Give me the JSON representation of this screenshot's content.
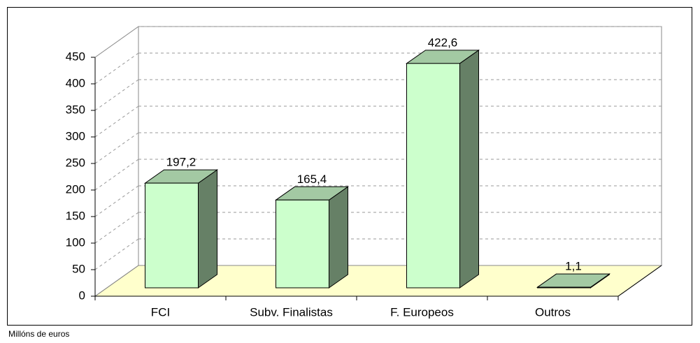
{
  "chart_data": {
    "type": "bar3d",
    "categories": [
      "FCI",
      "Subv. Finalistas",
      "F. Europeos",
      "Outros"
    ],
    "values": [
      197.2,
      165.4,
      422.6,
      1.1
    ],
    "value_labels": [
      "197,2",
      "165,4",
      "422,6",
      "1,1"
    ],
    "colors": {
      "front": "#ccffcc",
      "top": "#a3c9a3",
      "side": "#668066",
      "floor": "#ffffcc"
    },
    "ylim": [
      0,
      450
    ],
    "yticks": [
      0,
      50,
      100,
      150,
      200,
      250,
      300,
      350,
      400,
      450
    ],
    "grid": true,
    "footnote": "Millóns de euros"
  }
}
